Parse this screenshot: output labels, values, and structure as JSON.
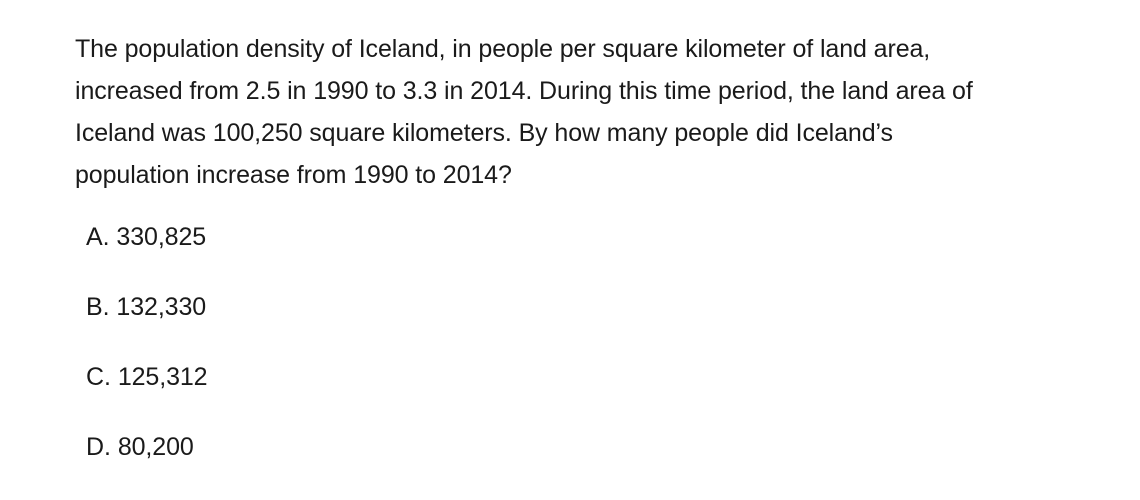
{
  "question": {
    "lines": [
      "The population density of Iceland, in people per square kilometer of land area,",
      "increased from 2.5 in 1990 to 3.3 in 2014. During this time period, the land area of",
      "Iceland was 100,250 square kilometers. By how many people did Iceland’s",
      "population increase from 1990 to 2014?"
    ]
  },
  "choices": [
    {
      "letter": "A.",
      "value": "330,825"
    },
    {
      "letter": "B.",
      "value": "132,330"
    },
    {
      "letter": "C.",
      "value": "125,312"
    },
    {
      "letter": "D.",
      "value": "80,200"
    }
  ]
}
